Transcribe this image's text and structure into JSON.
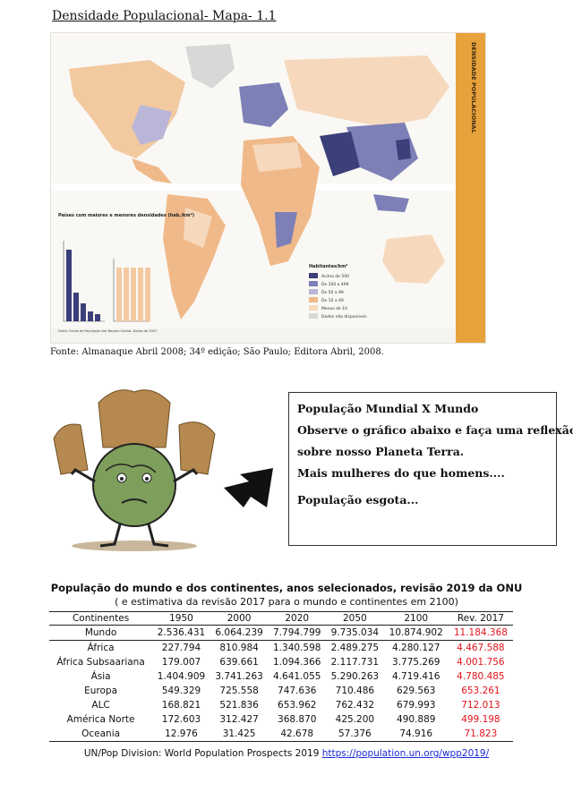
{
  "header": {
    "title": "Densidade Populacional- Mapa- 1.1"
  },
  "map": {
    "side_label": "DENSIDADE POPULACIONAL",
    "chart_heading": "Países com maiores e menores densidades (hab./km²)",
    "legend_title": "Habitantes/km²",
    "legend_items": [
      {
        "label": "Acima de 500",
        "color": "#3b3f7a"
      },
      {
        "label": "De 100 a 499",
        "color": "#7d7fb7"
      },
      {
        "label": "De 50 a 99",
        "color": "#b9b6d8"
      },
      {
        "label": "De 10 a 49",
        "color": "#f0b98a"
      },
      {
        "label": "Menos de 10",
        "color": "#f6d9bd"
      },
      {
        "label": "Dados não disponíveis",
        "color": "#d8d8d8"
      }
    ],
    "source_note": "Fonte: Fundo de População das Nações Unidas. Dados de 2007."
  },
  "source": {
    "text": "Fonte: Almanaque Abril 2008; 34º edição; São Paulo; Editora Abril, 2008."
  },
  "info_box": {
    "line1": "População Mundial X Mundo",
    "line2": "Observe o gráfico abaixo e faça uma reflexão",
    "line3": "sobre nosso Planeta Terra.",
    "line4": "Mais mulheres do que homens....",
    "line5": "População esgota..."
  },
  "table": {
    "title": "População do mundo  e dos continentes, anos selecionados, revisão 2019 da ONU",
    "subtitle": "( e estimativa da revisão 2017 para o mundo e continentes em 2100)",
    "headers": [
      "Continentes",
      "1950",
      "2000",
      "2020",
      "2050",
      "2100",
      "Rev. 2017"
    ],
    "rows": [
      [
        "Mundo",
        "2.536.431",
        "6.064.239",
        "7.794.799",
        "9.735.034",
        "10.874.902",
        "11.184.368"
      ],
      [
        "África",
        "227.794",
        "810.984",
        "1.340.598",
        "2.489.275",
        "4.280.127",
        "4.467.588"
      ],
      [
        "África Subsaariana",
        "179.007",
        "639.661",
        "1.094.366",
        "2.117.731",
        "3.775.269",
        "4.001.756"
      ],
      [
        "Ásia",
        "1.404.909",
        "3.741.263",
        "4.641.055",
        "5.290.263",
        "4.719.416",
        "4.780.485"
      ],
      [
        "Europa",
        "549.329",
        "725.558",
        "747.636",
        "710.486",
        "629.563",
        "653.261"
      ],
      [
        "ALC",
        "168.821",
        "521.836",
        "653.962",
        "762.432",
        "679.993",
        "712.013"
      ],
      [
        "América Norte",
        "172.603",
        "312.427",
        "368.870",
        "425.200",
        "490.889",
        "499.198"
      ],
      [
        "Oceania",
        "12.976",
        "31.425",
        "42.678",
        "57.376",
        "74.916",
        "71.823"
      ]
    ],
    "rev_color": "#e0141b"
  },
  "footer": {
    "text": "UN/Pop Division: World Population Prospects 2019 ",
    "link": "https://population.un.org/wpp2019/"
  }
}
